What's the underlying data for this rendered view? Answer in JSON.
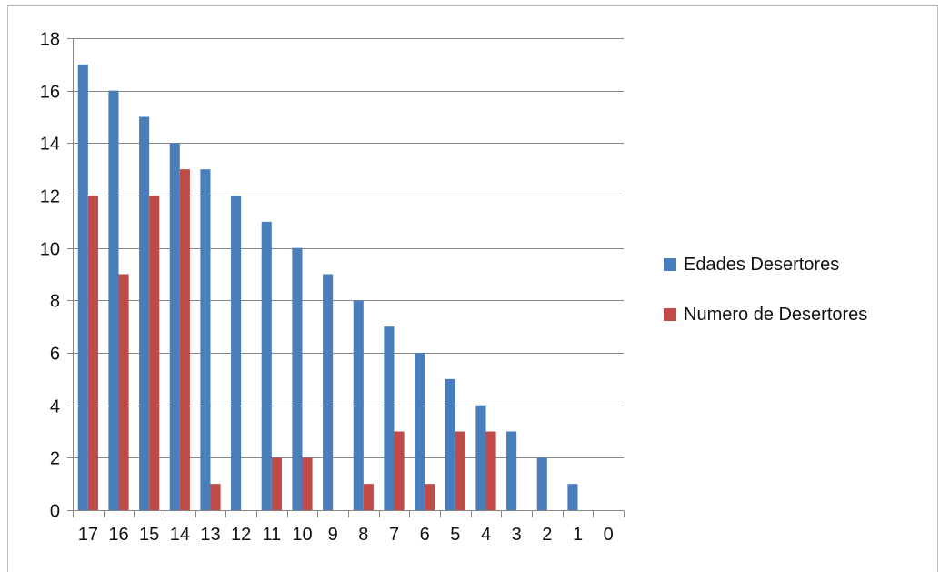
{
  "chart_data": {
    "type": "bar",
    "title": "",
    "xlabel": "",
    "ylabel": "",
    "categories": [
      "17",
      "16",
      "15",
      "14",
      "13",
      "12",
      "11",
      "10",
      "9",
      "8",
      "7",
      "6",
      "5",
      "4",
      "3",
      "2",
      "1",
      "0"
    ],
    "series": [
      {
        "name": "Edades Desertores",
        "color": "#4a7ebb",
        "values": [
          17,
          16,
          15,
          14,
          13,
          12,
          11,
          10,
          9,
          8,
          7,
          6,
          5,
          4,
          3,
          2,
          1,
          0
        ]
      },
      {
        "name": "Numero de Desertores",
        "color": "#be4b48",
        "values": [
          12,
          9,
          12,
          13,
          1,
          0,
          2,
          2,
          0,
          1,
          3,
          1,
          3,
          3,
          0,
          0,
          0,
          0
        ]
      }
    ],
    "ylim": [
      0,
      18
    ],
    "yticks": [
      0,
      2,
      4,
      6,
      8,
      10,
      12,
      14,
      16,
      18
    ],
    "grid": true,
    "legend_position": "right"
  }
}
